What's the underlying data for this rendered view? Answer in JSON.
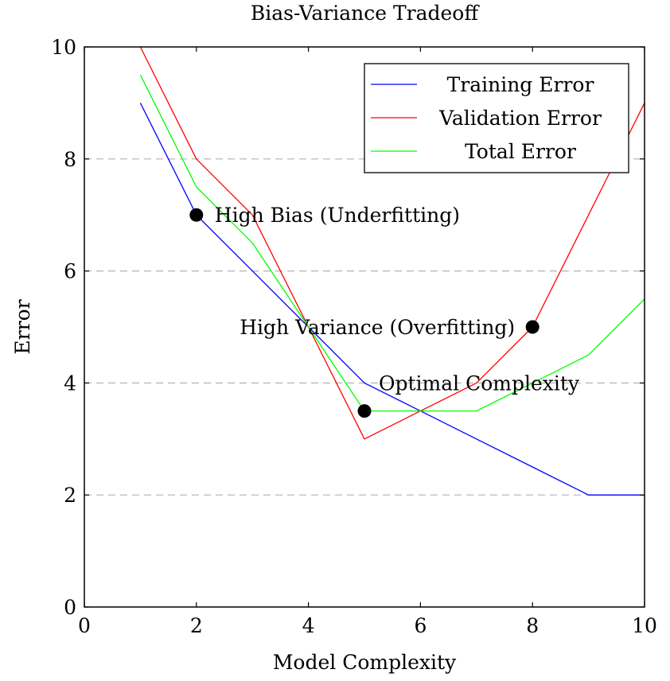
{
  "chart_data": {
    "type": "line",
    "title": "Bias-Variance Tradeoff",
    "xlabel": "Model Complexity",
    "ylabel": "Error",
    "xlim": [
      0,
      10
    ],
    "ylim": [
      0,
      10
    ],
    "xticks": [
      0,
      2,
      4,
      6,
      8,
      10
    ],
    "yticks": [
      0,
      2,
      4,
      6,
      8,
      10
    ],
    "grid": "horizontal dashed",
    "legend_position": "top-right",
    "series": [
      {
        "name": "Training Error",
        "color": "#0000ff",
        "x": [
          1,
          2,
          3,
          4,
          5,
          6,
          7,
          8,
          9,
          10
        ],
        "y": [
          9,
          7,
          6,
          5,
          4,
          3.5,
          3,
          2.5,
          2,
          2
        ]
      },
      {
        "name": "Validation Error",
        "color": "#ff0000",
        "x": [
          1,
          2,
          3,
          4,
          5,
          6,
          7,
          8,
          9,
          10
        ],
        "y": [
          10,
          8,
          7,
          5,
          3,
          3.5,
          4,
          5,
          7,
          9
        ]
      },
      {
        "name": "Total Error",
        "color": "#00ff00",
        "x": [
          1,
          2,
          3,
          4,
          5,
          6,
          7,
          8,
          9,
          10
        ],
        "y": [
          9.5,
          7.5,
          6.5,
          5,
          3.5,
          3.5,
          3.5,
          4,
          4.5,
          5.5
        ]
      }
    ],
    "annotations": [
      {
        "x": 2,
        "y": 7,
        "text": "High Bias (Underfitting)",
        "anchor": "east"
      },
      {
        "x": 8,
        "y": 5,
        "text": "High Variance (Overfitting)",
        "anchor": "west"
      },
      {
        "x": 5,
        "y": 3.5,
        "text": "Optimal Complexity",
        "anchor": "north-east"
      }
    ]
  }
}
